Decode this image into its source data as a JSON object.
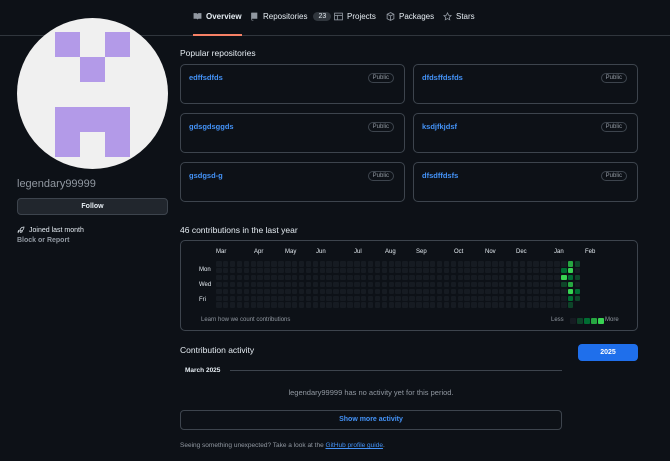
{
  "nav": {
    "tabs": [
      {
        "label": "Overview",
        "icon": "book-icon",
        "active": true
      },
      {
        "label": "Repositories",
        "icon": "repo-icon",
        "count": "23"
      },
      {
        "label": "Projects",
        "icon": "table-icon"
      },
      {
        "label": "Packages",
        "icon": "package-icon"
      },
      {
        "label": "Stars",
        "icon": "star-icon"
      }
    ]
  },
  "profile": {
    "username": "legendary99999",
    "follow_label": "Follow",
    "joined": "Joined last month",
    "block_report": "Block or Report"
  },
  "popular": {
    "title": "Popular repositories",
    "repos": [
      {
        "name": "edffsdfds",
        "visibility": "Public"
      },
      {
        "name": "dfdsffdsfds",
        "visibility": "Public"
      },
      {
        "name": "gdsgdsggds",
        "visibility": "Public"
      },
      {
        "name": "ksdjfkjdsf",
        "visibility": "Public"
      },
      {
        "name": "gsdgsd-g",
        "visibility": "Public"
      },
      {
        "name": "dfsdffdsfs",
        "visibility": "Public"
      }
    ]
  },
  "contributions": {
    "title": "46 contributions in the last year",
    "months": [
      "Mar",
      "Apr",
      "May",
      "Jun",
      "Jul",
      "Aug",
      "Sep",
      "Oct",
      "Nov",
      "Dec",
      "Jan",
      "Feb"
    ],
    "days": [
      "Mon",
      "Wed",
      "Fri"
    ],
    "learn": "Learn how we count contributions",
    "less": "Less",
    "more": "More",
    "colors": [
      "#161b22",
      "#0e4429",
      "#006d32",
      "#26a641",
      "#39d353"
    ]
  },
  "activity": {
    "title": "Contribution activity",
    "year": "2025",
    "month": "March 2025",
    "no_activity": "legendary99999 has no activity yet for this period.",
    "show_more": "Show more activity"
  },
  "footer": {
    "prefix": "Seeing something unexpected? Take a look at the ",
    "link": "GitHub profile guide",
    "suffix": "."
  }
}
